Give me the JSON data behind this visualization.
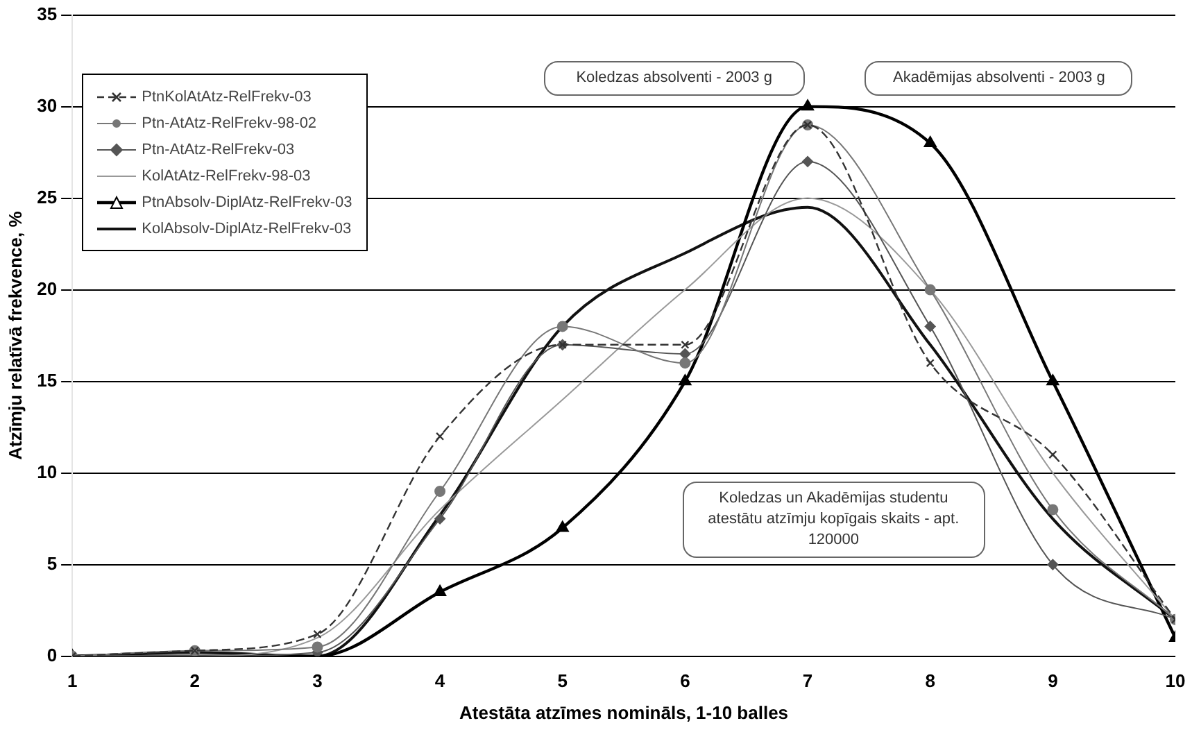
{
  "chart_data": {
    "type": "line",
    "xlabel": "Atestāta atzīmes nomināls, 1-10 balles",
    "ylabel": "Atzīmju relatīvā frekvence, %",
    "x": [
      1,
      2,
      3,
      4,
      5,
      6,
      7,
      8,
      9,
      10
    ],
    "xlim": [
      1,
      10
    ],
    "xticks": [
      1,
      2,
      3,
      4,
      5,
      6,
      7,
      8,
      9,
      10
    ],
    "ylim": [
      0,
      35
    ],
    "yticks": [
      0,
      5,
      10,
      15,
      20,
      25,
      30,
      35
    ],
    "grid": "y",
    "legend": "top left",
    "series": [
      {
        "name": "PtnKolAtAtz-RelFrekv-03",
        "color": "#333333",
        "marker": "cross",
        "line_style": "dashed",
        "values": [
          0,
          0.3,
          1.2,
          12,
          17,
          17,
          29,
          16,
          11,
          2
        ]
      },
      {
        "name": "Ptn-AtAtz-RelFrekv-98-02",
        "color": "#777777",
        "marker": "circle",
        "line_style": "solid",
        "values": [
          0,
          0.3,
          0.5,
          9,
          18,
          16,
          29,
          20,
          8,
          2
        ]
      },
      {
        "name": "Ptn-AtAtz-RelFrekv-03",
        "color": "#555555",
        "marker": "diamond",
        "line_style": "solid",
        "values": [
          0,
          0,
          0.2,
          7.5,
          17,
          16.5,
          27,
          18,
          5,
          2
        ]
      },
      {
        "name": "KolAtAtz-RelFrekv-98-03",
        "color": "#999999",
        "marker": "none",
        "line_style": "solid",
        "values": [
          0,
          0,
          1,
          8,
          14,
          20,
          25,
          20,
          10,
          2
        ]
      },
      {
        "name": "PtnAbsolv-DiplAtz-RelFrekv-03",
        "color": "#000000",
        "marker": "triangle",
        "line_style": "solid",
        "values": [
          0,
          0,
          0,
          3.5,
          7,
          15,
          30,
          28,
          15,
          1
        ]
      },
      {
        "name": "KolAbsolv-DiplAtz-RelFrekv-03",
        "color": "#111111",
        "marker": "none",
        "line_style": "solid",
        "values": [
          0,
          0.2,
          0,
          7.7,
          18,
          22,
          24.5,
          17,
          7.5,
          2
        ]
      }
    ],
    "annotations": [
      "Koledzas absolventi - 2003 g",
      "Akadēmijas absolventi - 2003 g",
      "Koledzas un Akadēmijas studentu atestātu atzīmju kopīgais skaits - apt. 120000"
    ]
  }
}
